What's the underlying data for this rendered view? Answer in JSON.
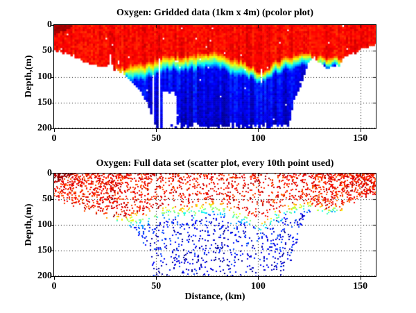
{
  "figure": {
    "background": "#ffffff",
    "axis_color": "#000000",
    "text_color": "#000000"
  },
  "chart_data": [
    {
      "type": "heatmap",
      "title": "Oxygen: Gridded data (1km x 4m) (pcolor plot)",
      "xlabel": "",
      "ylabel": "Depth,(m)",
      "xlim": [
        0,
        157.6
      ],
      "ylim": [
        200,
        0
      ],
      "xticks": [
        0,
        50,
        100,
        150
      ],
      "yticks": [
        0,
        50,
        100,
        150,
        200
      ],
      "grid": "dotted",
      "legend": "none",
      "colormap": "jet",
      "cell_size_km": 1,
      "cell_size_m": 4,
      "value_surface_high_oxygen": 0.88,
      "value_deep_low_oxygen": 0.12,
      "profile_format": "[distance_km, seafloor_depth_m, oxycline_top_m, oxycline_bottom_m]",
      "profile": [
        [
          0,
          47,
          90,
          120
        ],
        [
          4,
          54,
          90,
          120
        ],
        [
          8,
          57,
          90,
          120
        ],
        [
          12,
          65,
          90,
          119
        ],
        [
          17,
          75,
          88,
          118
        ],
        [
          23,
          81,
          86,
          115
        ],
        [
          26,
          84,
          85,
          112
        ],
        [
          27.5,
          52,
          85,
          112
        ],
        [
          29,
          86,
          84,
          112
        ],
        [
          34,
          92,
          83,
          110
        ],
        [
          36,
          103,
          80,
          104
        ],
        [
          40,
          117,
          77,
          105
        ],
        [
          43,
          133,
          74,
          106
        ],
        [
          45,
          144,
          72,
          104
        ],
        [
          47.5,
          172,
          70,
          103
        ],
        [
          49,
          200,
          69,
          102
        ],
        [
          51,
          200,
          66,
          95
        ],
        [
          54,
          200,
          62,
          90
        ],
        [
          58,
          200,
          60,
          88
        ],
        [
          62,
          197,
          62,
          92
        ],
        [
          66,
          200,
          60,
          90
        ],
        [
          70,
          198,
          58,
          86
        ],
        [
          74,
          200,
          56,
          84
        ],
        [
          78,
          198,
          52,
          82
        ],
        [
          82,
          200,
          58,
          88
        ],
        [
          86,
          197,
          64,
          94
        ],
        [
          90,
          200,
          68,
          98
        ],
        [
          94,
          200,
          72,
          100
        ],
        [
          98,
          198,
          85,
          108
        ],
        [
          102,
          200,
          92,
          112
        ],
        [
          105,
          200,
          82,
          104
        ],
        [
          108,
          198,
          73,
          96
        ],
        [
          112,
          200,
          65,
          90
        ],
        [
          115,
          193,
          62,
          86
        ],
        [
          117,
          150,
          60,
          84
        ],
        [
          121,
          116,
          56,
          80
        ],
        [
          123,
          90,
          54,
          78
        ],
        [
          125,
          73,
          54,
          76
        ],
        [
          127.5,
          62,
          70,
          90
        ],
        [
          130,
          75,
          62,
          80
        ],
        [
          134,
          82,
          63,
          82
        ],
        [
          139,
          80,
          64,
          83
        ],
        [
          141,
          69,
          65,
          88
        ],
        [
          144,
          56,
          80,
          110
        ],
        [
          148,
          52,
          85,
          115
        ],
        [
          151,
          43,
          85,
          115
        ],
        [
          157.6,
          38,
          85,
          115
        ]
      ],
      "missing_data": {
        "gap_columns": [
          {
            "x": 48.2,
            "width": 1.2,
            "from_depth": 98,
            "to_depth": 200
          },
          {
            "x": 51.4,
            "width": 1.3,
            "from_depth": 63,
            "to_depth": 200
          },
          {
            "x": 101.5,
            "width": 0.8,
            "from_depth": 86,
            "to_depth": 113
          }
        ],
        "patch": {
          "x1": 53,
          "x2": 60.4,
          "d1": 131,
          "d2": 196
        },
        "speck_rate": 0.007
      },
      "seed": 42
    },
    {
      "type": "scatter",
      "title": "Oxygen: Full data set (scatter plot, every 10th point used)",
      "xlabel": "Distance, (km)",
      "ylabel": "Depth,(m)",
      "xlim": [
        0,
        157.6
      ],
      "ylim": [
        200,
        0
      ],
      "xticks": [
        0,
        50,
        100,
        150
      ],
      "yticks": [
        0,
        50,
        100,
        150,
        200
      ],
      "grid": "dotted",
      "legend": "none",
      "colormap": "jet",
      "n_points": 2900,
      "marker_size_px": 2,
      "depth_bias_exponent": 1.35,
      "value_noise": 0.17,
      "seed": 11
    }
  ]
}
